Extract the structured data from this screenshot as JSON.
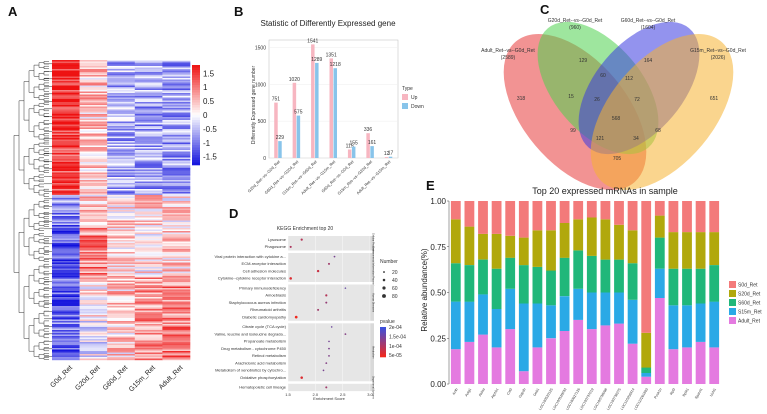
{
  "colors": {
    "heat_high": "#ee1111",
    "heat_mid": "#ffffff",
    "heat_low": "#1111dd",
    "up": "#f7b6c1",
    "down": "#88c4ea",
    "venn": [
      "#e83b3b",
      "#4fd14f",
      "#3a3ae0",
      "#f5b232"
    ],
    "stack": [
      "#f37a7a",
      "#b1a80c",
      "#20b77a",
      "#2aa9e6",
      "#e47ae0"
    ],
    "kegg_panel": "#e6e6e6",
    "kegg_strip": "#d9d9d9"
  },
  "panel_labels": [
    "A",
    "B",
    "C",
    "D",
    "E"
  ],
  "chart_data": [
    {
      "panel": "A",
      "type": "heatmap",
      "title": "",
      "columns": [
        "G0d_Ret",
        "G20d_Ret",
        "G60d_Ret",
        "G15m_Ret",
        "Adult_Ret"
      ],
      "colorbar_ticks": [
        "1.5",
        "1",
        "0.5",
        "0",
        "-0.5",
        "-1",
        "-1.5"
      ],
      "clim": [
        -1.8,
        1.8
      ]
    },
    {
      "panel": "B",
      "type": "bar",
      "title": "Statistic of Differently Expressed gene",
      "ylabel": "Differently Expressed gene number",
      "ylim": [
        0,
        1600
      ],
      "yticks": [
        "0",
        "500",
        "1000",
        "1500"
      ],
      "categories": [
        "G20d_Ret--vs--G0d_Ret",
        "G60d_Ret--vs--G20d_Ret",
        "G15m_Ret--vs--G60d_Ret",
        "Adult_Ret--vs--G15m_Ret",
        "G60d_Ret--vs--G0d_Ret",
        "G15m_Ret--vs--G20d_Ret",
        "Adult_Ret--vs--G15m_Ret"
      ],
      "legend_title": "Type",
      "series": [
        {
          "name": "Up",
          "values": [
            751,
            1020,
            1541,
            1351,
            115,
            336,
            12
          ]
        },
        {
          "name": "Down",
          "values": [
            229,
            575,
            1289,
            1218,
            155,
            161,
            17
          ]
        }
      ]
    },
    {
      "panel": "C",
      "type": "venn",
      "sets": [
        {
          "name": "Adult_Ret--vs--G0d_Ret",
          "size": "(2589)"
        },
        {
          "name": "G20d_Ret--vs--G0d_Ret",
          "size": "(960)"
        },
        {
          "name": "G60d_Ret--vs--G0d_Ret",
          "size": "(1604)"
        },
        {
          "name": "G15m_Ret--vs--G0d_Ret",
          "size": "(2026)"
        }
      ],
      "regions": [
        "318",
        "129",
        "164",
        "651",
        "60",
        "112",
        "15",
        "26",
        "72",
        "568",
        "99",
        "68",
        "121",
        "34",
        "705"
      ]
    },
    {
      "panel": "D",
      "type": "scatter",
      "title": "KEGG Enrichment top 20",
      "xlabel": "Enrichment Score",
      "xlim": [
        1.5,
        3.0
      ],
      "xticks": [
        "1.5",
        "2.0",
        "2.5",
        "3.0"
      ],
      "size_legend_title": "Number",
      "size_legend": [
        "20",
        "40",
        "60",
        "80"
      ],
      "color_legend_title": "pvalue",
      "color_legend": [
        "2e-04",
        "1.5e-04",
        "1e-04",
        "5e-05"
      ],
      "groups": [
        {
          "name": "Cellular Processes",
          "terms": [
            {
              "term": "Lysosome",
              "score": 1.75,
              "n": 30
            },
            {
              "term": "Phagosome",
              "score": 1.55,
              "n": 28
            }
          ]
        },
        {
          "name": "Environmental Information Processing",
          "terms": [
            {
              "term": "Viral protein interaction with cytokine a...",
              "score": 2.35,
              "n": 15
            },
            {
              "term": "ECM-receptor interaction",
              "score": 2.25,
              "n": 25
            },
            {
              "term": "Cell adhesion molecules",
              "score": 2.05,
              "n": 35
            },
            {
              "term": "Cytokine--cytokine receptor interaction",
              "score": 1.55,
              "n": 40
            }
          ]
        },
        {
          "name": "Human Diseases",
          "terms": [
            {
              "term": "Primary immunodeficiency",
              "score": 2.55,
              "n": 10
            },
            {
              "term": "Amoebiasis",
              "score": 2.2,
              "n": 30
            },
            {
              "term": "Staphylococcus aureus infection",
              "score": 2.2,
              "n": 22
            },
            {
              "term": "Rheumatoid arthritis",
              "score": 2.05,
              "n": 25
            },
            {
              "term": "Diabetic cardiomyopathy",
              "score": 1.65,
              "n": 45
            }
          ]
        },
        {
          "name": "Metabolism",
          "terms": [
            {
              "term": "Citrate cycle (TCA cycle)",
              "score": 2.3,
              "n": 12
            },
            {
              "term": "Valine, leucine and isoleucine degrada...",
              "score": 2.55,
              "n": 18
            },
            {
              "term": "Propanoate metabolism",
              "score": 2.25,
              "n": 14
            },
            {
              "term": "Drug metabolism - cytochrome P450",
              "score": 2.25,
              "n": 16
            },
            {
              "term": "Retinol metabolism",
              "score": 2.25,
              "n": 17
            },
            {
              "term": "Arachidonic acid metabolism",
              "score": 2.2,
              "n": 18
            },
            {
              "term": "Metabolism of xenobiotics by cytochro...",
              "score": 2.15,
              "n": 15
            },
            {
              "term": "Oxidative phosphorylation",
              "score": 1.75,
              "n": 40
            }
          ]
        },
        {
          "name": "Organismal Systems",
          "terms": [
            {
              "term": "Hematopoietic cell lineage",
              "score": 2.2,
              "n": 25
            }
          ]
        }
      ]
    },
    {
      "panel": "E",
      "type": "bar",
      "stacked": true,
      "title": "Top 20 expressed mRNAs in sample",
      "ylabel": "Relative abundance(%)",
      "ylim": [
        0,
        1.0
      ],
      "yticks": [
        "0.00",
        "0.25",
        "0.50",
        "0.75",
        "1.00"
      ],
      "categories": [
        "Actb",
        "Actg1",
        "Aldoa",
        "Atp1b1",
        "Cst3",
        "Gapdh",
        "Gnb1",
        "LOC100520125",
        "LOC100526033",
        "LOC100627126",
        "LOC100737019",
        "LOC100738098",
        "LOC100738275",
        "LOC110258314",
        "LOC110261893",
        "Pcsk1n",
        "Rpl3",
        "Rpl41",
        "Sparcl1",
        "Uchl1"
      ],
      "legend_series": [
        "S0d_Ret",
        "S20d_Ret",
        "S60d_Ret",
        "S15m_Ret",
        "Adult_Ret"
      ],
      "series": [
        {
          "name": "Adult_Ret",
          "values": [
            0.19,
            0.23,
            0.27,
            0.2,
            0.3,
            0.07,
            0.2,
            0.25,
            0.29,
            0.35,
            0.3,
            0.32,
            0.33,
            0.22,
            0.04,
            0.47,
            0.19,
            0.2,
            0.23,
            0.2
          ]
        },
        {
          "name": "S15m_Ret",
          "values": [
            0.26,
            0.22,
            0.22,
            0.21,
            0.22,
            0.37,
            0.24,
            0.18,
            0.19,
            0.17,
            0.2,
            0.18,
            0.17,
            0.24,
            0.02,
            0.16,
            0.24,
            0.23,
            0.21,
            0.25
          ]
        },
        {
          "name": "S60d_Ret",
          "values": [
            0.21,
            0.2,
            0.19,
            0.22,
            0.17,
            0.21,
            0.2,
            0.19,
            0.21,
            0.21,
            0.2,
            0.18,
            0.18,
            0.2,
            0.03,
            0.17,
            0.2,
            0.2,
            0.19,
            0.2
          ]
        },
        {
          "name": "S20d_Ret",
          "values": [
            0.24,
            0.21,
            0.14,
            0.19,
            0.12,
            0.15,
            0.2,
            0.22,
            0.19,
            0.17,
            0.21,
            0.22,
            0.19,
            0.18,
            0.19,
            0.12,
            0.2,
            0.2,
            0.2,
            0.18
          ]
        },
        {
          "name": "S0d_Ret",
          "values": [
            0.1,
            0.14,
            0.18,
            0.18,
            0.19,
            0.2,
            0.16,
            0.16,
            0.12,
            0.1,
            0.09,
            0.1,
            0.13,
            0.16,
            0.72,
            0.08,
            0.17,
            0.17,
            0.17,
            0.17
          ]
        }
      ]
    }
  ]
}
